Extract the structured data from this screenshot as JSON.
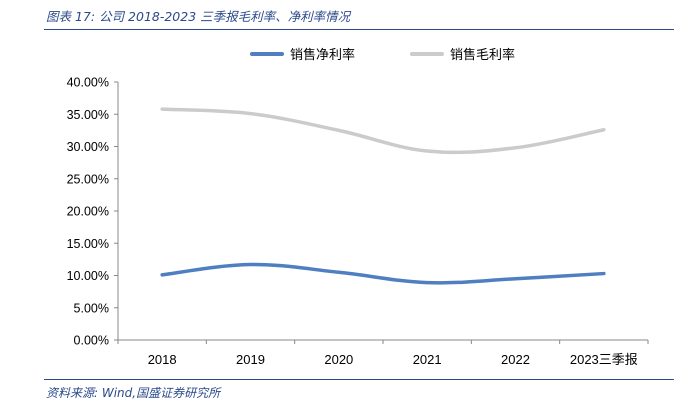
{
  "caption": "图表 17:  公司 2018-2023 三季报毛利率、净利率情况",
  "source": "资料来源: Wind,国盛证券研究所",
  "chart_data": {
    "type": "line",
    "categories": [
      "2018",
      "2019",
      "2020",
      "2021",
      "2022",
      "2023三季报"
    ],
    "series": [
      {
        "name": "销售净利率",
        "color": "#4f7fc0",
        "values": [
          10.1,
          11.7,
          10.5,
          8.9,
          9.5,
          10.3
        ]
      },
      {
        "name": "销售毛利率",
        "color": "#cbcbcb",
        "values": [
          35.8,
          35.1,
          32.5,
          29.3,
          29.8,
          32.6
        ]
      }
    ],
    "y_ticks": [
      "0.00%",
      "5.00%",
      "10.00%",
      "15.00%",
      "20.00%",
      "25.00%",
      "30.00%",
      "35.00%",
      "40.00%"
    ],
    "ylim": [
      0,
      40
    ],
    "y_unit": "%",
    "legend_position": "top",
    "grid": false
  }
}
